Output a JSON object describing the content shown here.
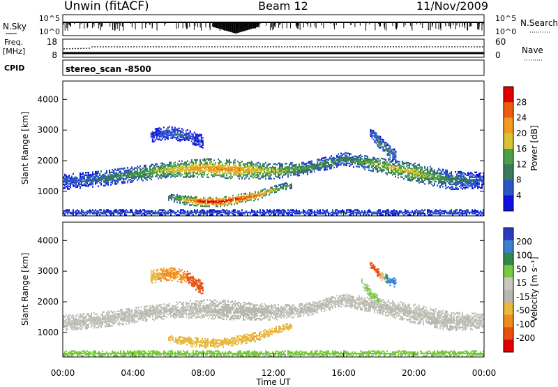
{
  "header": {
    "station": "Unwin (fitACF)",
    "beam": "Beam 12",
    "date": "11/Nov/2009"
  },
  "status_panels": {
    "nsky_label": "N.Sky",
    "nsky_ticks": [
      "10^5",
      "10^0"
    ],
    "nsearch_label": "N.Search",
    "nsearch_ticks": [
      "10^5",
      "10^0"
    ],
    "freq_label": "Freq.",
    "freq_unit": "[MHz]",
    "freq_ticks": [
      "18",
      "8"
    ],
    "nave_label": "Nave",
    "nave_ticks": [
      "60",
      "0"
    ],
    "cpid_label": "CPID",
    "cpid_value": "stereo_scan -8500"
  },
  "colors": {
    "power_scale": [
      "#1010e0",
      "#2a56c8",
      "#3a7a5a",
      "#4aa048",
      "#d9c230",
      "#f29a20",
      "#ee5a10",
      "#e00000"
    ],
    "velocity_scale": [
      "#2a3ac0",
      "#3c7fd0",
      "#2e8a4a",
      "#78c840",
      "#c8c8c0",
      "#b8b8b0",
      "#e8b840",
      "#f08c1c",
      "#e85010",
      "#e00000"
    ]
  },
  "chart_data": [
    {
      "type": "heatmap",
      "panel": "power",
      "ylabel": "Slant Range [km]",
      "yticks": [
        "1000",
        "2000",
        "3000",
        "4000"
      ],
      "ylim": [
        200,
        4600
      ],
      "xlim": [
        "00:00",
        "24:00"
      ],
      "colorbar": {
        "label": "Power [dB]",
        "ticks": [
          "4",
          "8",
          "12",
          "16",
          "20",
          "24",
          "28"
        ],
        "range": [
          0,
          30
        ]
      },
      "bands": [
        {
          "name_hint": "main_echo_band",
          "x_hours": [
            0,
            2,
            4,
            6,
            8,
            10,
            12,
            14,
            16,
            18,
            20,
            22,
            24
          ],
          "range_center_km": [
            1300,
            1400,
            1550,
            1700,
            1750,
            1700,
            1650,
            1750,
            2050,
            1850,
            1600,
            1350,
            1350
          ],
          "half_width_km": [
            250,
            250,
            250,
            250,
            300,
            300,
            250,
            200,
            200,
            250,
            300,
            300,
            250
          ],
          "peak_power_db": [
            6,
            8,
            12,
            18,
            22,
            22,
            16,
            12,
            10,
            16,
            18,
            10,
            6
          ]
        },
        {
          "name_hint": "near_range_echo",
          "x_hours": [
            6,
            7,
            8,
            9,
            10,
            11,
            12,
            13
          ],
          "range_center_km": [
            800,
            700,
            650,
            650,
            750,
            850,
            1050,
            1200
          ],
          "half_width_km": [
            100,
            150,
            150,
            150,
            150,
            150,
            100,
            100
          ],
          "peak_power_db": [
            10,
            20,
            30,
            30,
            28,
            24,
            18,
            10
          ]
        },
        {
          "name_hint": "high_range_patch_a",
          "x_hours": [
            5,
            6,
            7,
            8
          ],
          "range_center_km": [
            2800,
            2900,
            2800,
            2600
          ],
          "half_width_km": [
            200,
            200,
            200,
            200
          ],
          "peak_power_db": [
            4,
            6,
            6,
            4
          ]
        },
        {
          "name_hint": "high_range_patch_b",
          "x_hours": [
            17.5,
            18,
            18.5,
            19
          ],
          "range_center_km": [
            2900,
            2600,
            2300,
            2100
          ],
          "half_width_km": [
            150,
            200,
            200,
            200
          ],
          "peak_power_db": [
            6,
            10,
            10,
            8
          ]
        },
        {
          "name_hint": "ground_clutter",
          "x_hours": [
            0,
            24
          ],
          "range_center_km": [
            300,
            300
          ],
          "half_width_km": [
            80,
            80
          ],
          "peak_power_db": [
            6,
            6
          ]
        }
      ]
    },
    {
      "type": "heatmap",
      "panel": "velocity",
      "ylabel": "Slant Range [km]",
      "yticks": [
        "1000",
        "2000",
        "3000",
        "4000"
      ],
      "ylim": [
        200,
        4600
      ],
      "xlim": [
        "00:00",
        "24:00"
      ],
      "xlabel": "Time UT",
      "xticks": [
        "00:00",
        "04:00",
        "08:00",
        "12:00",
        "16:00",
        "20:00",
        "00:00"
      ],
      "colorbar": {
        "label": "Velocity [m s⁻¹]",
        "ticks": [
          "200",
          "100",
          "50",
          "15",
          "-15",
          "-50",
          "-100",
          "-200"
        ],
        "range": [
          -250,
          250
        ]
      },
      "bands": [
        {
          "name_hint": "main_echo_band",
          "x_hours": [
            0,
            2,
            4,
            6,
            8,
            10,
            12,
            14,
            16,
            18,
            20,
            22,
            24
          ],
          "range_center_km": [
            1300,
            1400,
            1550,
            1700,
            1750,
            1700,
            1650,
            1750,
            2050,
            1850,
            1600,
            1350,
            1350
          ],
          "half_width_km": [
            250,
            250,
            250,
            250,
            300,
            300,
            250,
            200,
            200,
            250,
            300,
            300,
            250
          ],
          "velocity_ms": [
            0,
            0,
            0,
            0,
            0,
            -10,
            0,
            0,
            0,
            0,
            0,
            0,
            0
          ]
        },
        {
          "name_hint": "near_range_echo",
          "x_hours": [
            6,
            7,
            8,
            9,
            10,
            11,
            12,
            13
          ],
          "range_center_km": [
            800,
            700,
            650,
            650,
            750,
            850,
            1050,
            1200
          ],
          "half_width_km": [
            100,
            150,
            150,
            150,
            150,
            150,
            100,
            100
          ],
          "velocity_ms": [
            -30,
            -40,
            -40,
            -40,
            -40,
            -50,
            -30,
            -20
          ]
        },
        {
          "name_hint": "high_range_patch_a",
          "x_hours": [
            5,
            6,
            7,
            8
          ],
          "range_center_km": [
            2800,
            2900,
            2800,
            2400
          ],
          "half_width_km": [
            200,
            200,
            200,
            200
          ],
          "velocity_ms": [
            -40,
            -60,
            -100,
            -200
          ]
        },
        {
          "name_hint": "high_range_patch_b",
          "x_hours": [
            17.5,
            18,
            18.5,
            19
          ],
          "range_center_km": [
            3200,
            2900,
            2700,
            2600
          ],
          "half_width_km": [
            100,
            150,
            150,
            150
          ],
          "velocity_ms": [
            -150,
            -100,
            150,
            200
          ]
        },
        {
          "name_hint": "high_range_patch_b_tail",
          "x_hours": [
            17,
            17.5,
            18
          ],
          "range_center_km": [
            2600,
            2300,
            2000
          ],
          "half_width_km": [
            150,
            150,
            150
          ],
          "velocity_ms": [
            15,
            20,
            15
          ]
        },
        {
          "name_hint": "ground_clutter",
          "x_hours": [
            0,
            24
          ],
          "range_center_km": [
            300,
            300
          ],
          "half_width_km": [
            80,
            80
          ],
          "velocity_ms": [
            20,
            20
          ]
        }
      ]
    }
  ]
}
